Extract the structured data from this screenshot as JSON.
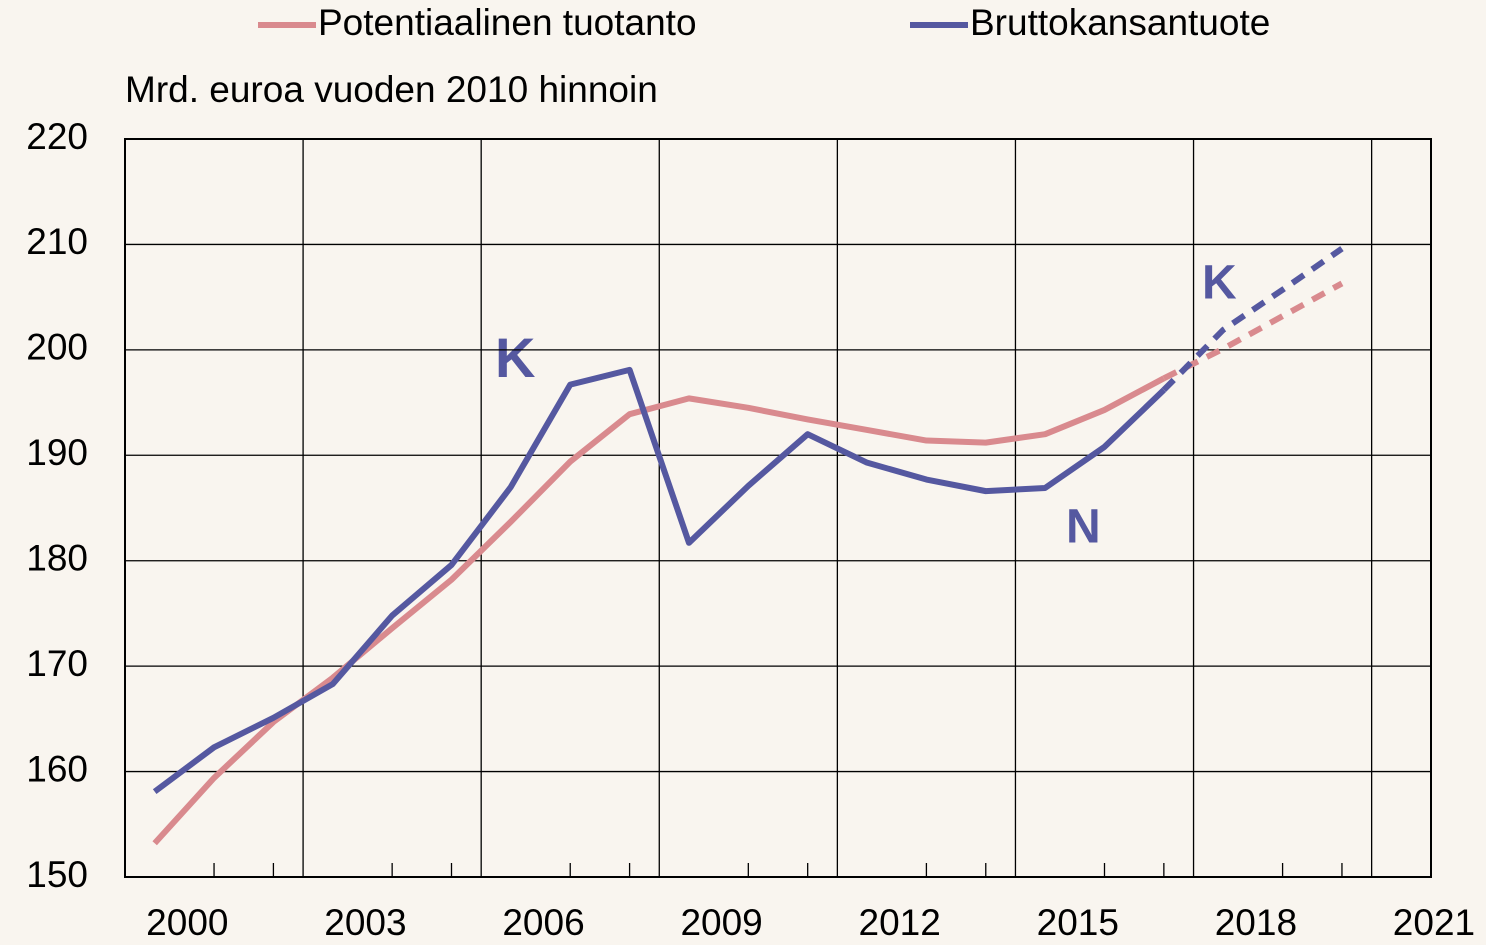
{
  "chart_data": {
    "type": "line",
    "ylabel": "Mrd. euroa vuoden 2010 hinnoin",
    "x": [
      2000,
      2001,
      2002,
      2003,
      2004,
      2005,
      2006,
      2007,
      2008,
      2009,
      2010,
      2011,
      2012,
      2013,
      2014,
      2015,
      2016,
      2017,
      2018,
      2019,
      2020
    ],
    "series": [
      {
        "name": "Potentiaalinen tuotanto",
        "color": "#d98a8e",
        "values": [
          153.2,
          159.4,
          164.7,
          168.9,
          173.6,
          178.2,
          183.7,
          189.4,
          193.9,
          195.4,
          194.5,
          193.4,
          192.4,
          191.4,
          191.2,
          192.0,
          194.3,
          197.3,
          null,
          null,
          null
        ],
        "forecast": [
          null,
          null,
          null,
          null,
          null,
          null,
          null,
          null,
          null,
          null,
          null,
          null,
          null,
          null,
          null,
          null,
          null,
          197.3,
          200.1,
          203.2,
          206.3
        ]
      },
      {
        "name": "Bruttokansantuote",
        "color": "#5558a0",
        "values": [
          158.1,
          162.3,
          165.1,
          168.3,
          174.8,
          179.6,
          187.0,
          196.7,
          198.1,
          181.7,
          187.1,
          192.0,
          189.3,
          187.7,
          186.6,
          186.9,
          190.8,
          196.2,
          null,
          null,
          null
        ],
        "forecast": [
          null,
          null,
          null,
          null,
          null,
          null,
          null,
          null,
          null,
          null,
          null,
          null,
          null,
          null,
          null,
          null,
          null,
          196.2,
          201.9,
          205.7,
          209.6
        ]
      }
    ],
    "annotations": [
      "K",
      "K",
      "N"
    ],
    "xlim": [
      1999.5,
      2021.5
    ],
    "xticks": [
      2000,
      2003,
      2006,
      2009,
      2012,
      2015,
      2018,
      2021
    ],
    "ylim": [
      150,
      220
    ],
    "yticks": [
      150,
      160,
      170,
      180,
      190,
      200,
      210,
      220
    ],
    "grid": true
  }
}
